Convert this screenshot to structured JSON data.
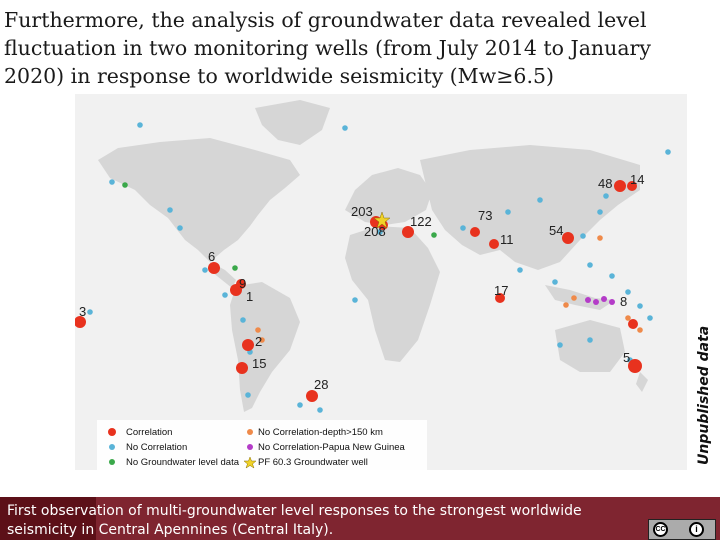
{
  "slide": {
    "title": "Furthermore, the analysis of groundwater data revealed level fluctuation in two monitoring wells (from July 2014 to January 2020) in response to worldwide seismicity (Mw≥6.5)",
    "side_label": "Unpublished data",
    "caption": "First observation of multi-groundwater level responses to the strongest worldwide seismicity in Central Apennines (Central Italy).",
    "license_icon_1": "CC",
    "license_icon_2": "i"
  },
  "map": {
    "event_labels": [
      "203",
      "208",
      "122",
      "73",
      "48",
      "14",
      "54",
      "11",
      "6",
      "9",
      "1",
      "17",
      "8",
      "3",
      "2",
      "15",
      "28",
      "5"
    ],
    "legend": [
      {
        "label": "Correlation",
        "symbol": "red-dot",
        "color": "#e8321e"
      },
      {
        "label": "No Correlation-depth>150 km",
        "symbol": "orange-dot",
        "color": "#ef8a4a"
      },
      {
        "label": "No Correlation",
        "symbol": "blue-dot",
        "color": "#5ab4d8"
      },
      {
        "label": "No Correlation-Papua New Guinea",
        "symbol": "purple-dot",
        "color": "#b43cc8"
      },
      {
        "label": "No Groundwater level data",
        "symbol": "green-dot",
        "color": "#3aa84a"
      },
      {
        "label": "PF 60.3 Groundwater well",
        "symbol": "star",
        "color": "#f0d228"
      }
    ]
  },
  "colors": {
    "footer": "#7f2530",
    "footer_dark": "#5c1018",
    "land": "#d6d6d6",
    "ocean": "#f1f1f1"
  }
}
